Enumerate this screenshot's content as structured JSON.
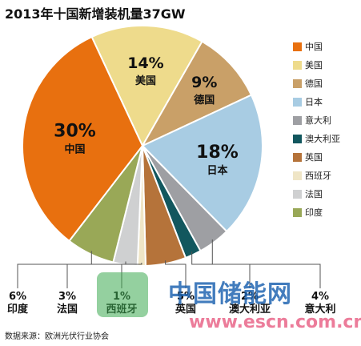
{
  "chart_data": {
    "type": "pie",
    "title": "2013年十国新增装机量37GW",
    "categories": [
      "中国",
      "美国",
      "德国",
      "日本",
      "意大利",
      "澳大利亚",
      "英国",
      "西班牙",
      "法国",
      "印度"
    ],
    "values": [
      30,
      14,
      9,
      18,
      4,
      2,
      5,
      1,
      3,
      6
    ],
    "value_labels": [
      "30%",
      "14%",
      "9%",
      "18%",
      "4%",
      "2%",
      "5%",
      "1%",
      "3%",
      "6%"
    ],
    "colors": [
      "#E8700F",
      "#EEDB8C",
      "#C9A068",
      "#A8CCE3",
      "#9E9FA3",
      "#12575E",
      "#B5733A",
      "#EFE5C6",
      "#CFD0D1",
      "#99A857"
    ],
    "legend_position": "right",
    "source": "数据来源：欧洲光伏行业协会"
  },
  "watermark": {
    "text": "中国储能网",
    "url": "www.escn.com.cn"
  }
}
